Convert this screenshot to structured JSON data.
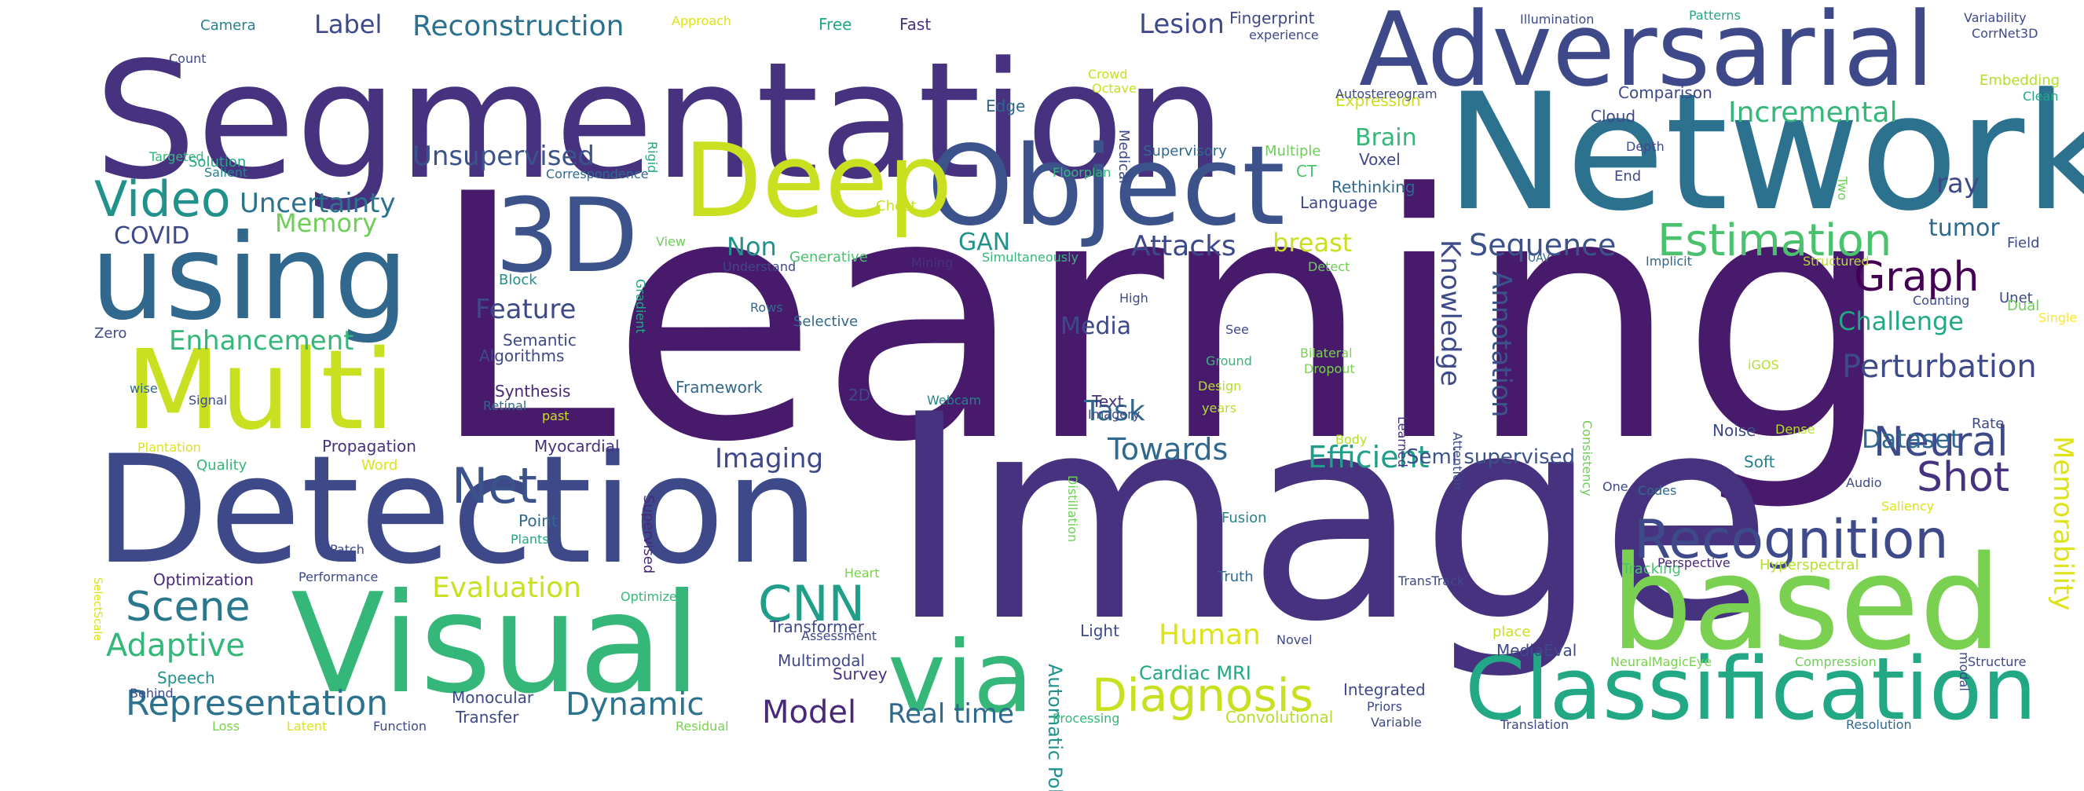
{
  "word_cloud": {
    "palette": [
      "#440154",
      "#482878",
      "#3e4a89",
      "#31688e",
      "#26828e",
      "#1f9e89",
      "#35b779",
      "#6ece58",
      "#b5de2b",
      "#fde725"
    ],
    "words": [
      {
        "text": "Learning",
        "color": "#481a6c"
      },
      {
        "text": "Image",
        "color": "#46327e"
      },
      {
        "text": "Segmentation",
        "color": "#46327e"
      },
      {
        "text": "Network",
        "color": "#2c728e"
      },
      {
        "text": "Adversarial",
        "color": "#3e4989"
      },
      {
        "text": "Detection",
        "color": "#3e4989"
      },
      {
        "text": "Visual",
        "color": "#35b779"
      },
      {
        "text": "based",
        "color": "#7ad151"
      },
      {
        "text": "Classification",
        "color": "#22a884"
      },
      {
        "text": "using",
        "color": "#31688e"
      },
      {
        "text": "Object",
        "color": "#3b528b"
      },
      {
        "text": "Deep",
        "color": "#c8e020"
      },
      {
        "text": "3D",
        "color": "#3b528b"
      },
      {
        "text": "Multi",
        "color": "#c8e020"
      },
      {
        "text": "via",
        "color": "#35b779"
      },
      {
        "text": "Recognition",
        "color": "#3e4a89"
      },
      {
        "text": "Video",
        "color": "#21918c"
      },
      {
        "text": "Estimation",
        "color": "#4ac16d"
      },
      {
        "text": "CNN",
        "color": "#1f9e89"
      },
      {
        "text": "Diagnosis",
        "color": "#c8e020"
      },
      {
        "text": "Memorability",
        "color": "#dde318"
      },
      {
        "text": "Net",
        "color": "#3b528b"
      },
      {
        "text": "Scene",
        "color": "#2a788e"
      },
      {
        "text": "Representation",
        "color": "#2c728e"
      },
      {
        "text": "Neural",
        "color": "#3e4989"
      },
      {
        "text": "Shot",
        "color": "#46327e"
      },
      {
        "text": "Graph",
        "color": "#440154"
      },
      {
        "text": "Sequence",
        "color": "#3b528b"
      },
      {
        "text": "Knowledge",
        "color": "#3e4a89"
      },
      {
        "text": "Annotation",
        "color": "#3b528b"
      },
      {
        "text": "Attacks",
        "color": "#3e4989"
      },
      {
        "text": "Uncertainty",
        "color": "#2c728e"
      },
      {
        "text": "Unsupervised",
        "color": "#3b528b"
      },
      {
        "text": "Reconstruction",
        "color": "#2c728e"
      },
      {
        "text": "Perturbation",
        "color": "#3e4a89"
      },
      {
        "text": "Incremental",
        "color": "#35b779"
      },
      {
        "text": "Efficient",
        "color": "#1f9e89"
      },
      {
        "text": "Towards",
        "color": "#31688e"
      },
      {
        "text": "Evaluation",
        "color": "#c8e020"
      },
      {
        "text": "Adaptive",
        "color": "#35b779"
      },
      {
        "text": "Dynamic",
        "color": "#2c728e"
      },
      {
        "text": "Model",
        "color": "#482878"
      },
      {
        "text": "Real time",
        "color": "#31688e"
      },
      {
        "text": "Human",
        "color": "#dde318"
      },
      {
        "text": "Imaging",
        "color": "#3e4989"
      },
      {
        "text": "Feature",
        "color": "#3e4989"
      },
      {
        "text": "Enhancement",
        "color": "#35b779"
      },
      {
        "text": "Memory",
        "color": "#6ece58"
      },
      {
        "text": "COVID",
        "color": "#3e4989"
      },
      {
        "text": "Lesion",
        "color": "#3e4989"
      },
      {
        "text": "Label",
        "color": "#3e4989"
      },
      {
        "text": "Task",
        "color": "#31688e"
      },
      {
        "text": "Media",
        "color": "#3e4989"
      },
      {
        "text": "breast",
        "color": "#c8e020"
      },
      {
        "text": "Challenge",
        "color": "#22a884"
      },
      {
        "text": "Dataset",
        "color": "#31688e"
      },
      {
        "text": "Brain",
        "color": "#35b779"
      },
      {
        "text": "GAN",
        "color": "#21918c"
      },
      {
        "text": "Non",
        "color": "#21918c"
      },
      {
        "text": "tumor",
        "color": "#31688e"
      },
      {
        "text": "ray",
        "color": "#3e4989"
      },
      {
        "text": "Semi supervised",
        "color": "#3b528b"
      },
      {
        "text": "Automatic Polyp",
        "color": "#21918c"
      },
      {
        "text": "Cardiac MRI",
        "color": "#22a884"
      },
      {
        "text": "Synthesis",
        "color": "#482878"
      },
      {
        "text": "Algorithms",
        "color": "#3e4989"
      },
      {
        "text": "Semantic",
        "color": "#3e4989"
      },
      {
        "text": "Propagation",
        "color": "#46327e"
      },
      {
        "text": "Myocardial",
        "color": "#46327e"
      },
      {
        "text": "Speech",
        "color": "#21918c"
      },
      {
        "text": "Survey",
        "color": "#46327e"
      },
      {
        "text": "Transformer",
        "color": "#3e4989"
      },
      {
        "text": "Multimodal",
        "color": "#3e4989"
      },
      {
        "text": "Monocular",
        "color": "#3e4989"
      },
      {
        "text": "Transfer",
        "color": "#3e4989"
      },
      {
        "text": "Integrated",
        "color": "#3e4989"
      },
      {
        "text": "MediaEval",
        "color": "#3e4989"
      },
      {
        "text": "Convolutional",
        "color": "#b5de2b"
      },
      {
        "text": "Framework",
        "color": "#31688e"
      },
      {
        "text": "Light",
        "color": "#3e4989"
      },
      {
        "text": "Point",
        "color": "#31688e"
      },
      {
        "text": "Fingerprint",
        "color": "#3e4989"
      },
      {
        "text": "Expression",
        "color": "#c8e020"
      },
      {
        "text": "Comparison",
        "color": "#3e4989"
      },
      {
        "text": "Rethinking",
        "color": "#31688e"
      },
      {
        "text": "Language",
        "color": "#3e4989"
      },
      {
        "text": "Voxel",
        "color": "#3e4989"
      },
      {
        "text": "Cloud",
        "color": "#3e4989"
      },
      {
        "text": "Optimization",
        "color": "#482878"
      },
      {
        "text": "Camera",
        "color": "#26828e"
      },
      {
        "text": "Free",
        "color": "#22a884"
      },
      {
        "text": "Fast",
        "color": "#46327e"
      },
      {
        "text": "Selective",
        "color": "#31688e"
      },
      {
        "text": "Soft",
        "color": "#26828e"
      },
      {
        "text": "Noise",
        "color": "#3e4989"
      },
      {
        "text": "Audio",
        "color": "#3e4989"
      },
      {
        "text": "Field",
        "color": "#3e4989"
      },
      {
        "text": "Unet",
        "color": "#3e4989"
      },
      {
        "text": "Dual",
        "color": "#6ece58"
      },
      {
        "text": "Rate",
        "color": "#3e4989"
      },
      {
        "text": "Edge",
        "color": "#31688e"
      },
      {
        "text": "Text",
        "color": "#46327e"
      },
      {
        "text": "Ground",
        "color": "#35b779"
      },
      {
        "text": "Bilateral",
        "color": "#7ad151"
      },
      {
        "text": "Dropout",
        "color": "#7ad151"
      },
      {
        "text": "Body",
        "color": "#b5de2b"
      },
      {
        "text": "Design",
        "color": "#b5de2b"
      },
      {
        "text": "years",
        "color": "#b5de2b"
      },
      {
        "text": "Webcam",
        "color": "#26828e"
      },
      {
        "text": "2D",
        "color": "#3e4989"
      },
      {
        "text": "Fusion",
        "color": "#26828e"
      },
      {
        "text": "Truth",
        "color": "#31688e"
      },
      {
        "text": "Novel",
        "color": "#3e4989"
      },
      {
        "text": "Tracking",
        "color": "#4ac16d"
      },
      {
        "text": "Hyperspectral",
        "color": "#b5de2b"
      },
      {
        "text": "Perspective",
        "color": "#482878"
      },
      {
        "text": "Saliency",
        "color": "#dde318"
      },
      {
        "text": "Compression",
        "color": "#6ece58"
      },
      {
        "text": "Structure",
        "color": "#3e4989"
      },
      {
        "text": "NeuralMagicEye",
        "color": "#7ad151"
      },
      {
        "text": "Resolution",
        "color": "#31688e"
      },
      {
        "text": "Translation",
        "color": "#3e4989"
      },
      {
        "text": "Variable",
        "color": "#3e4989"
      },
      {
        "text": "Processing",
        "color": "#35b779"
      },
      {
        "text": "Priors",
        "color": "#3e4989"
      },
      {
        "text": "Residual",
        "color": "#7ad151"
      },
      {
        "text": "Function",
        "color": "#3e4989"
      },
      {
        "text": "Latent",
        "color": "#dde318"
      },
      {
        "text": "Loss",
        "color": "#7ad151"
      },
      {
        "text": "Behind",
        "color": "#3e4989"
      },
      {
        "text": "Performance",
        "color": "#3e4989"
      },
      {
        "text": "Plants",
        "color": "#22a884"
      },
      {
        "text": "Patch",
        "color": "#3e4989"
      },
      {
        "text": "Heart",
        "color": "#7ad151"
      },
      {
        "text": "Optimized",
        "color": "#35b779"
      },
      {
        "text": "Assessment",
        "color": "#3e4989"
      },
      {
        "text": "TransTrack",
        "color": "#3e4989"
      },
      {
        "text": "One",
        "color": "#3e4989"
      },
      {
        "text": "Codes",
        "color": "#31688e"
      },
      {
        "text": "place",
        "color": "#c8e020"
      },
      {
        "text": "modal",
        "color": "#3e4989"
      },
      {
        "text": "Quality",
        "color": "#35b779"
      },
      {
        "text": "Word",
        "color": "#dde318"
      },
      {
        "text": "Plantation",
        "color": "#dde318"
      },
      {
        "text": "past",
        "color": "#c8e020"
      },
      {
        "text": "Signal",
        "color": "#3e4989"
      },
      {
        "text": "wise",
        "color": "#31688e"
      },
      {
        "text": "Zero",
        "color": "#3e4989"
      },
      {
        "text": "Retinal",
        "color": "#31688e"
      },
      {
        "text": "Imagery",
        "color": "#3e4989"
      },
      {
        "text": "See",
        "color": "#3e4989"
      },
      {
        "text": "Distillation",
        "color": "#6ece58"
      },
      {
        "text": "Consistency",
        "color": "#6ece58"
      },
      {
        "text": "Attention",
        "color": "#3e4989"
      },
      {
        "text": "Learned",
        "color": "#46327e"
      },
      {
        "text": "iGOS",
        "color": "#b5de2b"
      },
      {
        "text": "Dense",
        "color": "#b5de2b"
      },
      {
        "text": "Single",
        "color": "#fde725"
      },
      {
        "text": "Supervisory",
        "color": "#31688e"
      },
      {
        "text": "Multiple",
        "color": "#6ece58"
      },
      {
        "text": "CT",
        "color": "#4ac16d"
      },
      {
        "text": "Medical",
        "color": "#3e4989"
      },
      {
        "text": "Crowd",
        "color": "#c8e020"
      },
      {
        "text": "Octave",
        "color": "#c8e020"
      },
      {
        "text": "Approach",
        "color": "#dde318"
      },
      {
        "text": "Floorplan",
        "color": "#35b779"
      },
      {
        "text": "Rigid",
        "color": "#22a884"
      },
      {
        "text": "Autostereogram",
        "color": "#3e4989"
      },
      {
        "text": "experience",
        "color": "#3e4989"
      },
      {
        "text": "Illumination",
        "color": "#3e4989"
      },
      {
        "text": "Patterns",
        "color": "#22a884"
      },
      {
        "text": "Variability",
        "color": "#3e4989"
      },
      {
        "text": "CorrNet3D",
        "color": "#3e4989"
      },
      {
        "text": "Clean",
        "color": "#22a884"
      },
      {
        "text": "Embedding",
        "color": "#b5de2b"
      },
      {
        "text": "Depth",
        "color": "#3e4989"
      },
      {
        "text": "End",
        "color": "#3e4989"
      },
      {
        "text": "Two",
        "color": "#6ece58"
      },
      {
        "text": "Count",
        "color": "#3e4989"
      },
      {
        "text": "Targeted",
        "color": "#35b779"
      },
      {
        "text": "Solution",
        "color": "#22a884"
      },
      {
        "text": "Salient",
        "color": "#26828e"
      },
      {
        "text": "Correspondence",
        "color": "#31688e"
      },
      {
        "text": "Gradient",
        "color": "#22a884"
      },
      {
        "text": "View",
        "color": "#6ece58"
      },
      {
        "text": "Chest",
        "color": "#c8e020"
      },
      {
        "text": "Generative",
        "color": "#4ac16d"
      },
      {
        "text": "Understand",
        "color": "#3e4989"
      },
      {
        "text": "Mining",
        "color": "#46327e"
      },
      {
        "text": "Simultaneously",
        "color": "#35b779"
      },
      {
        "text": "Detect",
        "color": "#6ece58"
      },
      {
        "text": "UAV",
        "color": "#31688e"
      },
      {
        "text": "Implicit",
        "color": "#31688e"
      },
      {
        "text": "Structured",
        "color": "#b5de2b"
      },
      {
        "text": "Counting",
        "color": "#3e4989"
      },
      {
        "text": "High",
        "color": "#3e4989"
      },
      {
        "text": "Block",
        "color": "#21918c"
      },
      {
        "text": "Rows",
        "color": "#31688e"
      },
      {
        "text": "SelectScale",
        "color": "#dde318"
      },
      {
        "text": "Supervised",
        "color": "#482878"
      }
    ]
  }
}
